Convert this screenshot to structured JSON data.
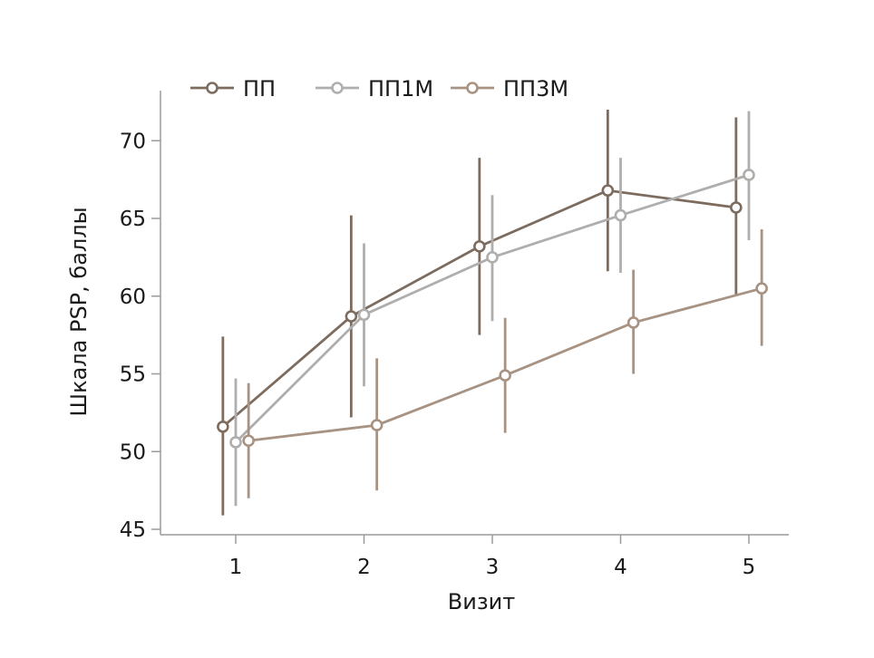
{
  "chart_data": {
    "type": "line",
    "xlabel": "Визит",
    "ylabel": "Шкала PSP, баллы",
    "categories": [
      1,
      2,
      3,
      4,
      5
    ],
    "ylim": [
      45,
      72
    ],
    "yticks": [
      45,
      50,
      55,
      60,
      65,
      70
    ],
    "xticks": [
      1,
      2,
      3,
      4,
      5
    ],
    "grid": false,
    "legend_position": "top",
    "series": [
      {
        "name": "ПП",
        "color": "#7d6b5e",
        "offset": -0.1,
        "values": [
          51.6,
          58.7,
          63.2,
          66.8,
          65.7
        ],
        "err_low": [
          45.9,
          52.2,
          57.5,
          61.6,
          60.0
        ],
        "err_high": [
          57.4,
          65.2,
          68.9,
          72.0,
          71.5
        ]
      },
      {
        "name": "ПП1М",
        "color": "#b0aeac",
        "offset": 0.0,
        "values": [
          50.6,
          58.8,
          62.5,
          65.2,
          67.8
        ],
        "err_low": [
          46.5,
          54.2,
          58.4,
          61.5,
          63.6
        ],
        "err_high": [
          54.7,
          63.4,
          66.5,
          68.9,
          71.9
        ]
      },
      {
        "name": "ПП3М",
        "color": "#a89282",
        "offset": 0.1,
        "values": [
          50.7,
          51.7,
          54.9,
          58.3,
          60.5
        ],
        "err_low": [
          47.0,
          47.5,
          51.2,
          55.0,
          56.8
        ],
        "err_high": [
          54.4,
          56.0,
          58.6,
          61.7,
          64.3
        ]
      }
    ]
  }
}
